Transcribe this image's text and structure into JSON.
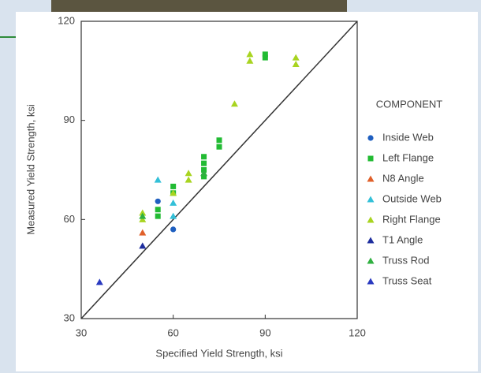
{
  "chart_data": {
    "type": "scatter",
    "xlabel": "Specified Yield Strength, ksi",
    "ylabel": "Measured Yield Strength, ksi",
    "legend_title": "COMPONENT",
    "xlim": [
      30,
      120
    ],
    "ylim": [
      30,
      120
    ],
    "xticks": [
      30,
      60,
      90,
      120
    ],
    "yticks": [
      30,
      60,
      90,
      120
    ],
    "legend": "right",
    "series": [
      {
        "name": "Inside Web",
        "color": "#1f5fc0",
        "marker": "circle",
        "x": [
          55,
          60
        ],
        "values": [
          65.5,
          57
        ]
      },
      {
        "name": "Left Flange",
        "color": "#22bb33",
        "marker": "square",
        "x": [
          55,
          55,
          60,
          60,
          70,
          70,
          70,
          70,
          75,
          75,
          90,
          90
        ],
        "values": [
          61,
          63,
          68,
          70,
          73,
          75,
          77,
          79,
          82,
          84,
          109,
          110
        ]
      },
      {
        "name": "N8 Angle",
        "color": "#e0602a",
        "marker": "triangle",
        "x": [
          50
        ],
        "values": [
          56
        ]
      },
      {
        "name": "Outside Web",
        "color": "#33c0d8",
        "marker": "triangle",
        "x": [
          55,
          60,
          60
        ],
        "values": [
          72,
          65,
          61
        ]
      },
      {
        "name": "Right Flange",
        "color": "#a8d420",
        "marker": "triangle",
        "x": [
          50,
          50,
          60,
          65,
          65,
          80,
          85,
          85,
          100,
          100
        ],
        "values": [
          60,
          62,
          68,
          72,
          74,
          95,
          108,
          110,
          107,
          109
        ]
      },
      {
        "name": "T1 Angle",
        "color": "#1e2e9e",
        "marker": "triangle",
        "x": [
          50
        ],
        "values": [
          52
        ]
      },
      {
        "name": "Truss Rod",
        "color": "#30b040",
        "marker": "triangle",
        "x": [
          50,
          70
        ],
        "values": [
          61,
          74
        ]
      },
      {
        "name": "Truss Seat",
        "color": "#2a3ac0",
        "marker": "triangle",
        "x": [
          36
        ],
        "values": [
          41
        ]
      }
    ]
  }
}
